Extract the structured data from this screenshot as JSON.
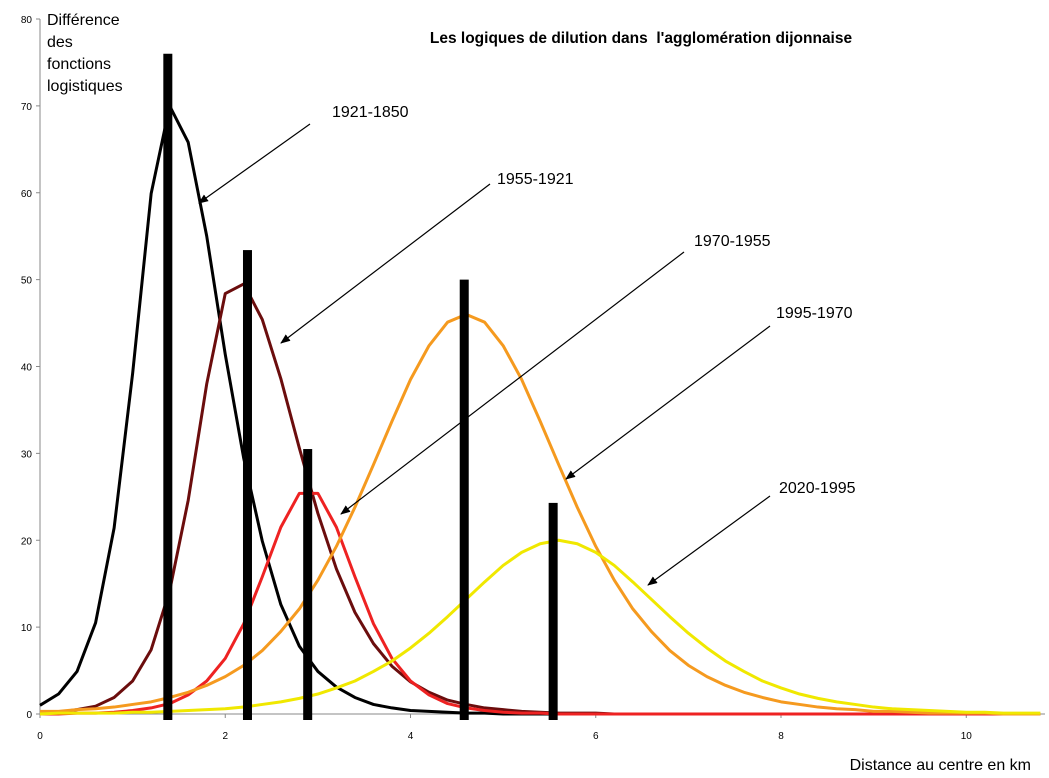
{
  "chart_data": {
    "type": "line",
    "title": "Les logiques de dilution dans  l'agglomération dijonnaise",
    "y_label": "Différence des fonctions logistiques",
    "x_label": "Distance au centre en km",
    "xlim": [
      0,
      10.85
    ],
    "ylim": [
      0,
      80
    ],
    "xticks": [
      0,
      2,
      4,
      6,
      8,
      10
    ],
    "yticks": [
      0,
      10,
      20,
      30,
      40,
      50,
      60,
      70,
      80
    ],
    "x": [
      0,
      0.2,
      0.4,
      0.6,
      0.8,
      1.0,
      1.2,
      1.4,
      1.6,
      1.8,
      2.0,
      2.2,
      2.4,
      2.6,
      2.8,
      3.0,
      3.2,
      3.4,
      3.6,
      3.8,
      4.0,
      4.2,
      4.4,
      4.6,
      4.8,
      5.0,
      5.2,
      5.4,
      5.6,
      5.8,
      6.0,
      6.2,
      6.4,
      6.6,
      6.8,
      7.0,
      7.2,
      7.4,
      7.6,
      7.8,
      8.0,
      8.2,
      8.4,
      8.6,
      8.8,
      9.0,
      9.2,
      9.4,
      9.6,
      9.8,
      10.0,
      10.2,
      10.4,
      10.6,
      10.8
    ],
    "series": [
      {
        "name": "1921-1850",
        "color": "#000000",
        "values": [
          1.0,
          2.3,
          4.9,
          10.5,
          21.4,
          39.2,
          59.9,
          70,
          65.8,
          55.0,
          41.4,
          29.4,
          19.9,
          12.6,
          7.8,
          4.9,
          3.1,
          1.9,
          1.1,
          0.7,
          0.4,
          0.3,
          0.2,
          0.1,
          0.1,
          0,
          0,
          0,
          0,
          0,
          0,
          0,
          0,
          0,
          0,
          0,
          0,
          0,
          0,
          0,
          0,
          0,
          0,
          0,
          0,
          0,
          0,
          0,
          0,
          0,
          0,
          0,
          0,
          0,
          0
        ]
      },
      {
        "name": "1955-1921",
        "color": "#6b0d0d",
        "values": [
          0.1,
          0.2,
          0.5,
          0.9,
          1.9,
          3.8,
          7.4,
          14.2,
          24.6,
          38.0,
          48.4,
          49.5,
          45.4,
          38.6,
          30.6,
          23.1,
          16.7,
          11.7,
          8.1,
          5.5,
          3.7,
          2.5,
          1.6,
          1.1,
          0.7,
          0.5,
          0.3,
          0.2,
          0.1,
          0.1,
          0.1,
          0,
          0,
          0,
          0,
          0,
          0,
          0,
          0,
          0,
          0,
          0,
          0,
          0,
          0,
          0,
          0,
          0,
          0,
          0,
          0,
          0,
          0,
          0,
          0
        ]
      },
      {
        "name": "1970-1955",
        "color": "#ee2222",
        "values": [
          0.0,
          0.0,
          0.1,
          0.1,
          0.2,
          0.4,
          0.7,
          1.2,
          2.2,
          3.8,
          6.4,
          10.4,
          15.8,
          21.5,
          25.4,
          25.4,
          21.5,
          15.8,
          10.4,
          6.4,
          3.8,
          2.2,
          1.2,
          0.7,
          0.4,
          0.2,
          0.1,
          0.1,
          0,
          0,
          0,
          0,
          0,
          0,
          0,
          0,
          0,
          0,
          0,
          0,
          0,
          0,
          0,
          0,
          0,
          0,
          0,
          0,
          0,
          0,
          0,
          0,
          0,
          0,
          0
        ]
      },
      {
        "name": "1995-1970",
        "color": "#f59a1f",
        "values": [
          0.3,
          0.3,
          0.5,
          0.6,
          0.8,
          1.1,
          1.4,
          1.9,
          2.5,
          3.3,
          4.3,
          5.6,
          7.3,
          9.5,
          12.1,
          15.4,
          19.3,
          23.8,
          28.7,
          33.7,
          38.5,
          42.4,
          45.1,
          46,
          45.1,
          42.4,
          38.5,
          33.7,
          28.7,
          23.8,
          19.3,
          15.4,
          12.1,
          9.5,
          7.3,
          5.6,
          4.3,
          3.3,
          2.5,
          1.9,
          1.4,
          1.1,
          0.8,
          0.6,
          0.5,
          0.3,
          0.3,
          0.2,
          0.1,
          0.1,
          0.1,
          0.1,
          0.0,
          0.0,
          0.0
        ]
      },
      {
        "name": "2020-1995",
        "color": "#f0e800",
        "values": [
          0.0,
          0.1,
          0.1,
          0.1,
          0.1,
          0.2,
          0.2,
          0.3,
          0.4,
          0.5,
          0.6,
          0.8,
          1.1,
          1.4,
          1.8,
          2.3,
          3.0,
          3.8,
          4.9,
          6.1,
          7.6,
          9.3,
          11.2,
          13.2,
          15.2,
          17.1,
          18.6,
          19.6,
          20,
          19.6,
          18.6,
          17.1,
          15.2,
          13.2,
          11.2,
          9.3,
          7.6,
          6.1,
          4.9,
          3.8,
          3.0,
          2.3,
          1.8,
          1.4,
          1.1,
          0.8,
          0.6,
          0.5,
          0.4,
          0.3,
          0.2,
          0.2,
          0.1,
          0.1,
          0.1
        ]
      }
    ],
    "bars": {
      "color": "#000000",
      "x": [
        1.38,
        2.24,
        2.89,
        4.58,
        5.54
      ],
      "values": [
        76,
        53.4,
        30.5,
        50,
        24.3
      ]
    }
  }
}
